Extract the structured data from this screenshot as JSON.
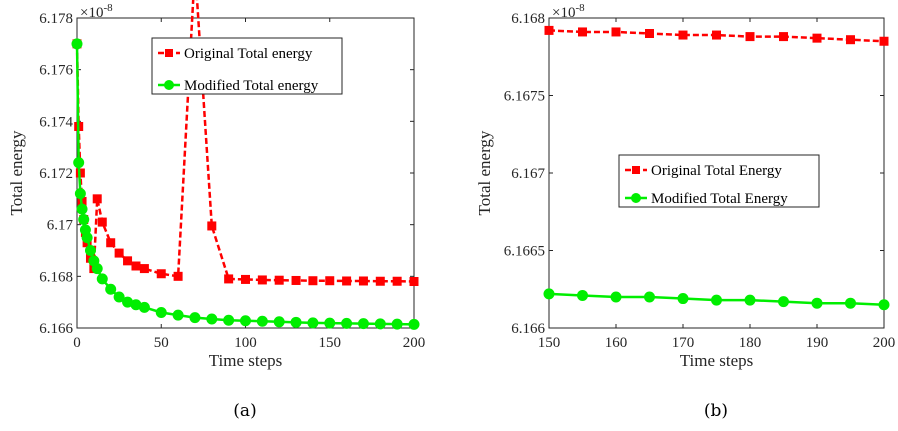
{
  "chart_data": [
    {
      "type": "line",
      "caption": "(a)",
      "multiplier": "×10",
      "multiplier_exp": "-8",
      "xlabel": "Time steps",
      "ylabel": "Total energy",
      "xlim": [
        0,
        200
      ],
      "ylim": [
        6.166,
        6.178
      ],
      "xticks": [
        0,
        50,
        100,
        150,
        200
      ],
      "xtick_labels": [
        "0",
        "50",
        "100",
        "150",
        "200"
      ],
      "yticks": [
        6.166,
        6.168,
        6.17,
        6.172,
        6.174,
        6.176,
        6.178
      ],
      "ytick_labels": [
        "6.166",
        "6.168",
        "6.17",
        "6.172",
        "6.174",
        "6.176",
        "6.178"
      ],
      "grid": false,
      "legend_position": "top-right",
      "series": [
        {
          "name": "Original Total energy",
          "color": "#ff0000",
          "marker": "square",
          "line_style": "dashed",
          "x": [
            0,
            1,
            2,
            3,
            4,
            5,
            6,
            8,
            10,
            12,
            15,
            20,
            25,
            30,
            35,
            40,
            50,
            60,
            70,
            80,
            90,
            100,
            110,
            120,
            130,
            140,
            150,
            160,
            170,
            180,
            190,
            200
          ],
          "y": [
            6.177,
            6.1738,
            6.172,
            6.1709,
            6.1702,
            6.1697,
            6.1693,
            6.1687,
            6.1683,
            6.171,
            6.1701,
            6.1693,
            6.1689,
            6.1686,
            6.1684,
            6.1683,
            6.1681,
            6.168,
            6.17995,
            6.16995,
            6.1679,
            6.16788,
            6.16786,
            6.16785,
            6.16784,
            6.16783,
            6.16783,
            6.16782,
            6.16782,
            6.16781,
            6.16781,
            6.1678
          ]
        },
        {
          "name": "Modified Total energy",
          "color": "#00ee00",
          "marker": "circle",
          "line_style": "solid",
          "x": [
            0,
            1,
            2,
            3,
            4,
            5,
            6,
            8,
            10,
            12,
            15,
            20,
            25,
            30,
            35,
            40,
            50,
            60,
            70,
            80,
            90,
            100,
            110,
            120,
            130,
            140,
            150,
            160,
            170,
            180,
            190,
            200
          ],
          "y": [
            6.177,
            6.1724,
            6.1712,
            6.1706,
            6.1702,
            6.1698,
            6.1695,
            6.169,
            6.1686,
            6.1683,
            6.1679,
            6.1675,
            6.1672,
            6.167,
            6.1669,
            6.1668,
            6.1666,
            6.1665,
            6.1664,
            6.16635,
            6.1663,
            6.16628,
            6.16626,
            6.16624,
            6.16622,
            6.1662,
            6.16619,
            6.16618,
            6.16617,
            6.16616,
            6.16615,
            6.16614
          ]
        }
      ]
    },
    {
      "type": "line",
      "caption": "(b)",
      "multiplier": "×10",
      "multiplier_exp": "-8",
      "xlabel": "Time steps",
      "ylabel": "Total energy",
      "xlim": [
        150,
        200
      ],
      "ylim": [
        6.166,
        6.168
      ],
      "xticks": [
        150,
        160,
        170,
        180,
        190,
        200
      ],
      "xtick_labels": [
        "150",
        "160",
        "170",
        "180",
        "190",
        "200"
      ],
      "yticks": [
        6.166,
        6.1665,
        6.167,
        6.1675,
        6.168
      ],
      "ytick_labels": [
        "6.166",
        "6.1665",
        "6.167",
        "6.1675",
        "6.168"
      ],
      "grid": false,
      "legend_position": "center-right",
      "series": [
        {
          "name": "Original Total Energy",
          "color": "#ff0000",
          "marker": "square",
          "line_style": "dashed",
          "x": [
            150,
            155,
            160,
            165,
            170,
            175,
            180,
            185,
            190,
            195,
            200
          ],
          "y": [
            6.16792,
            6.16791,
            6.16791,
            6.1679,
            6.16789,
            6.16789,
            6.16788,
            6.16788,
            6.16787,
            6.16786,
            6.16785
          ]
        },
        {
          "name": "Modified Total Energy",
          "color": "#00ee00",
          "marker": "circle",
          "line_style": "solid",
          "x": [
            150,
            155,
            160,
            165,
            170,
            175,
            180,
            185,
            190,
            195,
            200
          ],
          "y": [
            6.16622,
            6.16621,
            6.1662,
            6.1662,
            6.16619,
            6.16618,
            6.16618,
            6.16617,
            6.16616,
            6.16616,
            6.16615
          ]
        }
      ]
    }
  ]
}
